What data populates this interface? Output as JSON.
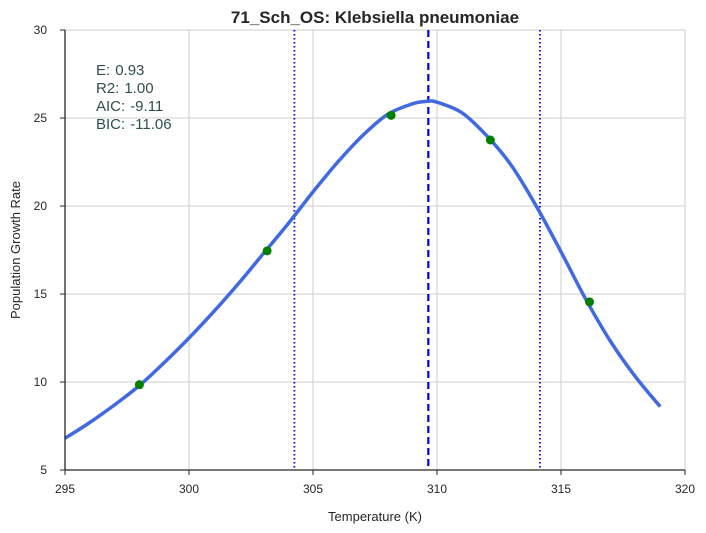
{
  "chart_data": {
    "type": "line",
    "title": "71_Sch_OS: Klebsiella pneumoniae",
    "xlabel": "Temperature (K)",
    "ylabel": "Population Growth Rate",
    "xlim": [
      295,
      320
    ],
    "ylim": [
      5,
      30
    ],
    "xticks": [
      295,
      300,
      305,
      310,
      315,
      320
    ],
    "yticks": [
      5,
      10,
      15,
      20,
      25,
      30
    ],
    "grid": true,
    "fit_curve": {
      "color": "#4169e1",
      "x": [
        295,
        296,
        297,
        298,
        299,
        300,
        301,
        302,
        303,
        304,
        305,
        306,
        307,
        308,
        309,
        309.6,
        310,
        311,
        312,
        313,
        314,
        315,
        316,
        317,
        318,
        319
      ],
      "y": [
        6.8,
        7.7,
        8.7,
        9.8,
        11.1,
        12.5,
        14.0,
        15.6,
        17.3,
        19.0,
        20.8,
        22.5,
        24.0,
        25.2,
        25.8,
        25.95,
        25.9,
        25.3,
        24.0,
        22.3,
        20.0,
        17.4,
        14.7,
        12.3,
        10.3,
        8.6
      ]
    },
    "observations": {
      "color": "#008000",
      "x": [
        298,
        303.15,
        308.15,
        312.15,
        316.15
      ],
      "y": [
        9.85,
        17.45,
        25.15,
        23.75,
        14.55
      ]
    },
    "vlines": [
      {
        "x": 309.65,
        "style": "dashed",
        "color": "#0000ee"
      },
      {
        "x": 304.25,
        "style": "dotted",
        "color": "#0000ee"
      },
      {
        "x": 314.15,
        "style": "dotted",
        "color": "#0000ee"
      }
    ],
    "stats_color": "#2f4f4f",
    "stats": [
      {
        "label": "E:",
        "value": "0.93"
      },
      {
        "label": "R2:",
        "value": "1.00"
      },
      {
        "label": "AIC:",
        "value": "-9.11"
      },
      {
        "label": "BIC:",
        "value": "-11.06"
      }
    ]
  }
}
